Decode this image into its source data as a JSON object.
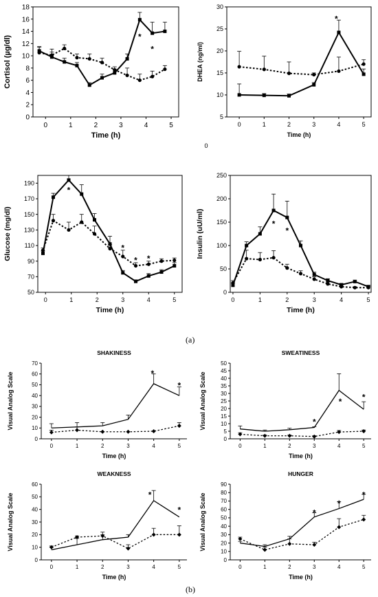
{
  "figure": {
    "label_a": "(a)",
    "label_b": "(b)"
  },
  "chart_data": [
    {
      "id": "cortisol",
      "type": "line",
      "title": "",
      "xlabel": "Time (h)",
      "ylabel": "Cortisol (µg/dl)",
      "xlim": [
        -0.5,
        5.3
      ],
      "ylim": [
        0,
        18
      ],
      "xticks": [
        0,
        1,
        2,
        3,
        4,
        5
      ],
      "yticks": [
        0,
        2,
        4,
        6,
        8,
        10,
        12,
        14,
        16,
        18
      ],
      "grid": false,
      "series": [
        {
          "style": "solid",
          "marker": "square",
          "x": [
            -0.25,
            0.25,
            0.75,
            1.25,
            1.75,
            2.25,
            2.75,
            3.25,
            3.75,
            4.25,
            4.75
          ],
          "y": [
            10.8,
            9.8,
            9.0,
            8.4,
            5.2,
            6.4,
            7.2,
            9.5,
            15.9,
            13.7,
            14.0
          ],
          "err": [
            0.6,
            0.8,
            0.6,
            0.5,
            0.4,
            0.6,
            0.6,
            0.8,
            1.2,
            1.8,
            1.5
          ]
        },
        {
          "style": "dotted",
          "marker": "circle",
          "x": [
            -0.25,
            0.25,
            0.75,
            1.25,
            1.75,
            2.25,
            2.75,
            3.25,
            3.75,
            4.25,
            4.75
          ],
          "y": [
            10.5,
            10.1,
            11.2,
            9.7,
            9.5,
            8.9,
            7.7,
            6.8,
            6.0,
            6.6,
            7.8
          ],
          "err": [
            1.0,
            1.0,
            0.6,
            0.6,
            0.8,
            0.7,
            0.5,
            1.2,
            1.0,
            0.9,
            0.6
          ]
        }
      ],
      "annotations": [
        {
          "text": "*",
          "x": 3.75,
          "y": 13.2
        },
        {
          "text": "*",
          "x": 4.25,
          "y": 11.2
        }
      ]
    },
    {
      "id": "dhea",
      "type": "line",
      "title": "",
      "xlabel": "Time (h)",
      "ylabel": "DHEA (ng/ml)",
      "xlim": [
        -0.5,
        5.3
      ],
      "ylim": [
        5,
        30
      ],
      "xticks": [
        0,
        1,
        2,
        3,
        4,
        5
      ],
      "yticks": [
        5,
        10,
        15,
        20,
        25,
        30
      ],
      "extra_ticks": [
        "0"
      ],
      "grid": false,
      "series": [
        {
          "style": "solid",
          "marker": "square",
          "x": [
            0,
            1,
            2,
            3,
            4,
            5
          ],
          "y": [
            10.0,
            9.9,
            9.8,
            12.3,
            24.2,
            14.7
          ],
          "err": [
            2.5,
            0.4,
            0.4,
            0.5,
            2.8,
            1.2
          ]
        },
        {
          "style": "dotted",
          "marker": "circle",
          "x": [
            0,
            1,
            2,
            3,
            4,
            5
          ],
          "y": [
            16.4,
            15.8,
            14.9,
            14.6,
            15.4,
            17.0
          ],
          "err": [
            3.5,
            3.0,
            2.6,
            0.4,
            3.2,
            1.0
          ]
        }
      ],
      "annotations": [
        {
          "text": "*",
          "x": 3.9,
          "y": 27.4
        }
      ]
    },
    {
      "id": "glucose",
      "type": "line",
      "title": "",
      "xlabel": "Time (h)",
      "ylabel": "Glucose (mg/dl)",
      "xlim": [
        -0.3,
        5.3
      ],
      "ylim": [
        50,
        200
      ],
      "xticks": [
        0,
        1,
        2,
        3,
        4,
        5
      ],
      "yticks": [
        50,
        70,
        90,
        110,
        130,
        150,
        170,
        190
      ],
      "grid": false,
      "series": [
        {
          "style": "solid",
          "marker": "square",
          "x": [
            -0.1,
            0.3,
            0.9,
            1.4,
            1.9,
            2.5,
            3.0,
            3.5,
            4.0,
            4.5,
            5.0
          ],
          "y": [
            100,
            172,
            194,
            176,
            143,
            112,
            75,
            64,
            71,
            76,
            84
          ],
          "err": [
            3,
            5,
            6,
            12,
            8,
            10,
            3,
            2,
            3,
            3,
            4
          ]
        },
        {
          "style": "dotted",
          "marker": "circle",
          "x": [
            -0.1,
            0.3,
            0.9,
            1.4,
            1.9,
            2.5,
            3.0,
            3.5,
            4.0,
            4.5,
            5.0
          ],
          "y": [
            104,
            142,
            130,
            140,
            125,
            106,
            96,
            84,
            86,
            90,
            91
          ],
          "err": [
            3,
            8,
            10,
            10,
            10,
            5,
            8,
            4,
            4,
            3,
            3
          ]
        }
      ],
      "annotations": [
        {
          "text": "*",
          "x": 0.9,
          "y": 182
        },
        {
          "text": "*",
          "x": 3.0,
          "y": 108
        },
        {
          "text": "*",
          "x": 3.5,
          "y": 92
        },
        {
          "text": "*",
          "x": 4.0,
          "y": 94
        }
      ]
    },
    {
      "id": "insulin",
      "type": "line",
      "title": "",
      "xlabel": "Time (h)",
      "ylabel": "Insulin (uU/ml)",
      "xlim": [
        -0.1,
        5.1
      ],
      "ylim": [
        0,
        250
      ],
      "xticks": [
        0,
        1,
        2,
        3,
        4,
        5
      ],
      "yticks": [
        0,
        50,
        100,
        150,
        200,
        250
      ],
      "grid": false,
      "series": [
        {
          "style": "solid",
          "marker": "square",
          "x": [
            0,
            0.5,
            1.0,
            1.5,
            2.0,
            2.5,
            3.0,
            3.5,
            4.0,
            4.5,
            5.0
          ],
          "y": [
            15,
            100,
            125,
            175,
            160,
            100,
            38,
            25,
            16,
            23,
            12
          ],
          "err": [
            5,
            8,
            15,
            35,
            35,
            10,
            5,
            4,
            3,
            3,
            3
          ]
        },
        {
          "style": "dotted",
          "marker": "circle",
          "x": [
            0,
            0.5,
            1.0,
            1.5,
            2.0,
            2.5,
            3.0,
            3.5,
            4.0,
            4.5,
            5.0
          ],
          "y": [
            20,
            72,
            70,
            74,
            52,
            40,
            28,
            18,
            12,
            10,
            10
          ],
          "err": [
            5,
            18,
            15,
            15,
            8,
            6,
            5,
            4,
            3,
            2,
            2
          ]
        }
      ],
      "annotations": [
        {
          "text": "*",
          "x": 1.5,
          "y": 148
        },
        {
          "text": "*",
          "x": 2.0,
          "y": 133
        }
      ]
    },
    {
      "id": "shakiness",
      "type": "line",
      "title": "SHAKINESS",
      "xlabel": "Time (h)",
      "ylabel": "Visual Analog Scale",
      "xlim": [
        -0.4,
        5.3
      ],
      "ylim": [
        0,
        70
      ],
      "xticks": [
        0,
        1,
        2,
        3,
        4,
        5
      ],
      "yticks": [
        0,
        10,
        20,
        30,
        40,
        50,
        60,
        70
      ],
      "grid": false,
      "series": [
        {
          "style": "solid",
          "marker": "none",
          "x": [
            0,
            1,
            2,
            3,
            4,
            5
          ],
          "y": [
            10,
            11,
            12,
            18,
            51,
            40
          ],
          "err": [
            4,
            4,
            3,
            4,
            9,
            8
          ]
        },
        {
          "style": "dotted",
          "marker": "diamond",
          "x": [
            0,
            1,
            2,
            3,
            4,
            5
          ],
          "y": [
            6,
            8,
            6.5,
            6.5,
            7,
            12
          ],
          "err": [
            2,
            3,
            0,
            0,
            0,
            3
          ]
        }
      ],
      "annotations": [
        {
          "text": "*",
          "x": 3.95,
          "y": 61
        },
        {
          "text": "*",
          "x": 5.0,
          "y": 50
        }
      ]
    },
    {
      "id": "sweatiness",
      "type": "line",
      "title": "SWEATINESS",
      "xlabel": "Time (h)",
      "ylabel": "Visual Analog Scale",
      "xlim": [
        -0.4,
        5.3
      ],
      "ylim": [
        0,
        50
      ],
      "xticks": [
        0,
        1,
        2,
        3,
        4,
        5
      ],
      "yticks": [
        0,
        5,
        10,
        15,
        20,
        25,
        30,
        35,
        40,
        45,
        50
      ],
      "grid": false,
      "series": [
        {
          "style": "solid",
          "marker": "none",
          "x": [
            0,
            1,
            2,
            3,
            4,
            5
          ],
          "y": [
            6.5,
            5,
            6,
            7.5,
            32,
            19.5
          ],
          "err": [
            2,
            0.8,
            1,
            0.5,
            11,
            5
          ]
        },
        {
          "style": "dotted",
          "marker": "diamond",
          "x": [
            0,
            1,
            2,
            3,
            4,
            5
          ],
          "y": [
            3,
            2,
            2,
            1.5,
            4.5,
            5
          ],
          "err": [
            1,
            0.5,
            0.5,
            0.5,
            1,
            0.8
          ]
        }
      ],
      "annotations": [
        {
          "text": "*",
          "x": 3.0,
          "y": 11.5
        },
        {
          "text": "*",
          "x": 4.05,
          "y": 25
        },
        {
          "text": "*",
          "x": 5.0,
          "y": 28
        }
      ]
    },
    {
      "id": "weakness",
      "type": "line",
      "title": "WEAKNESS",
      "xlabel": "Time (h)",
      "ylabel": "Visual Analog Scale",
      "xlim": [
        -0.4,
        5.3
      ],
      "ylim": [
        0,
        60
      ],
      "xticks": [
        0,
        1,
        2,
        3,
        4,
        5
      ],
      "yticks": [
        0,
        10,
        20,
        30,
        40,
        50,
        60
      ],
      "grid": false,
      "series": [
        {
          "style": "solid",
          "marker": "none",
          "x": [
            0,
            1,
            2,
            3,
            4,
            5
          ],
          "y": [
            8,
            12,
            16,
            18,
            47,
            34
          ],
          "err": [
            2,
            5,
            6,
            2,
            8,
            0
          ]
        },
        {
          "style": "dotted",
          "marker": "diamond",
          "x": [
            0,
            1,
            2,
            3,
            4,
            5
          ],
          "y": [
            10,
            18,
            19,
            9,
            20,
            20
          ],
          "err": [
            1,
            1,
            1,
            3,
            5,
            7
          ]
        }
      ],
      "annotations": [
        {
          "text": "*",
          "x": 3.85,
          "y": 52
        },
        {
          "text": "*",
          "x": 5.0,
          "y": 40
        }
      ]
    },
    {
      "id": "hunger",
      "type": "line",
      "title": "HUNGER",
      "xlabel": "Time (h)",
      "ylabel": "Visual Analog Scale",
      "xlim": [
        -0.4,
        5.3
      ],
      "ylim": [
        0,
        90
      ],
      "xticks": [
        0,
        1,
        2,
        3,
        4,
        5
      ],
      "yticks": [
        0,
        10,
        20,
        30,
        40,
        50,
        60,
        70,
        80,
        90
      ],
      "grid": false,
      "series": [
        {
          "style": "solid",
          "marker": "none",
          "x": [
            0,
            1,
            2,
            3,
            4,
            5
          ],
          "y": [
            20,
            16,
            25,
            51,
            61,
            72
          ],
          "err": [
            2,
            2,
            3,
            5,
            8,
            6
          ]
        },
        {
          "style": "dotted",
          "marker": "diamond",
          "x": [
            0,
            1,
            2,
            3,
            4,
            5
          ],
          "y": [
            25,
            12,
            19,
            18,
            39,
            48
          ],
          "err": [
            2,
            3,
            6,
            3,
            10,
            5
          ]
        }
      ],
      "annotations": [
        {
          "text": "*",
          "x": 3.0,
          "y": 57
        },
        {
          "text": "*",
          "x": 4.0,
          "y": 68
        },
        {
          "text": "*",
          "x": 5.0,
          "y": 78
        }
      ]
    }
  ]
}
